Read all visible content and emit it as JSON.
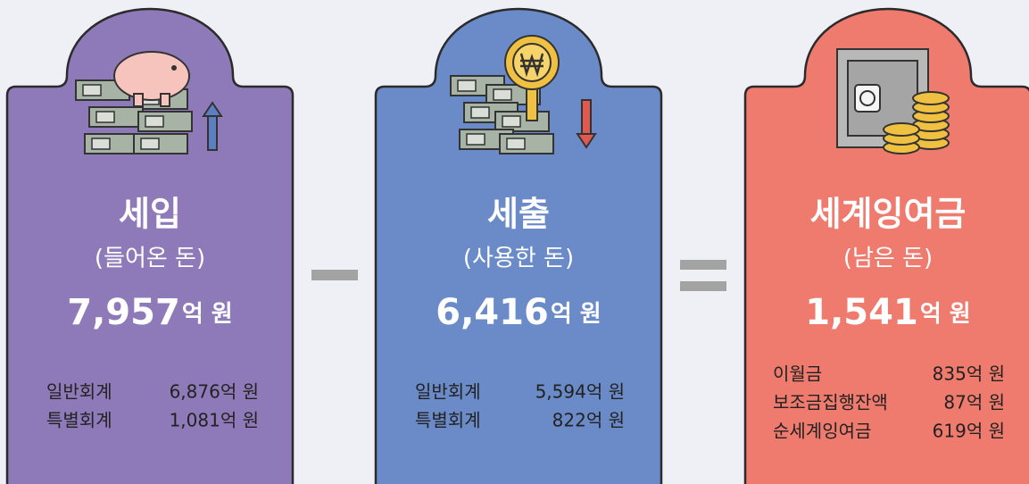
{
  "cards": [
    {
      "title": "세입",
      "subtitle": "(들어온 돈)",
      "amount": {
        "value": "7,957",
        "unit": "억 원"
      },
      "items": [
        {
          "label": "일반회계",
          "value": "6,876억 원"
        },
        {
          "label": "특별회계",
          "value": "1,081억 원"
        }
      ]
    },
    {
      "title": "세출",
      "subtitle": "(사용한 돈)",
      "amount": {
        "value": "6,416",
        "unit": "억 원"
      },
      "items": [
        {
          "label": "일반회계",
          "value": "5,594억 원"
        },
        {
          "label": "특별회계",
          "value": "822억 원"
        }
      ]
    },
    {
      "title": "세계잉여금",
      "subtitle": "(남은 돈)",
      "amount": {
        "value": "1,541",
        "unit": "억 원"
      },
      "items": [
        {
          "label": "이월금",
          "value": "835억 원"
        },
        {
          "label": "보조금집행잔액",
          "value": "87억 원"
        },
        {
          "label": "순세계잉여금",
          "value": "619억 원"
        }
      ]
    }
  ]
}
